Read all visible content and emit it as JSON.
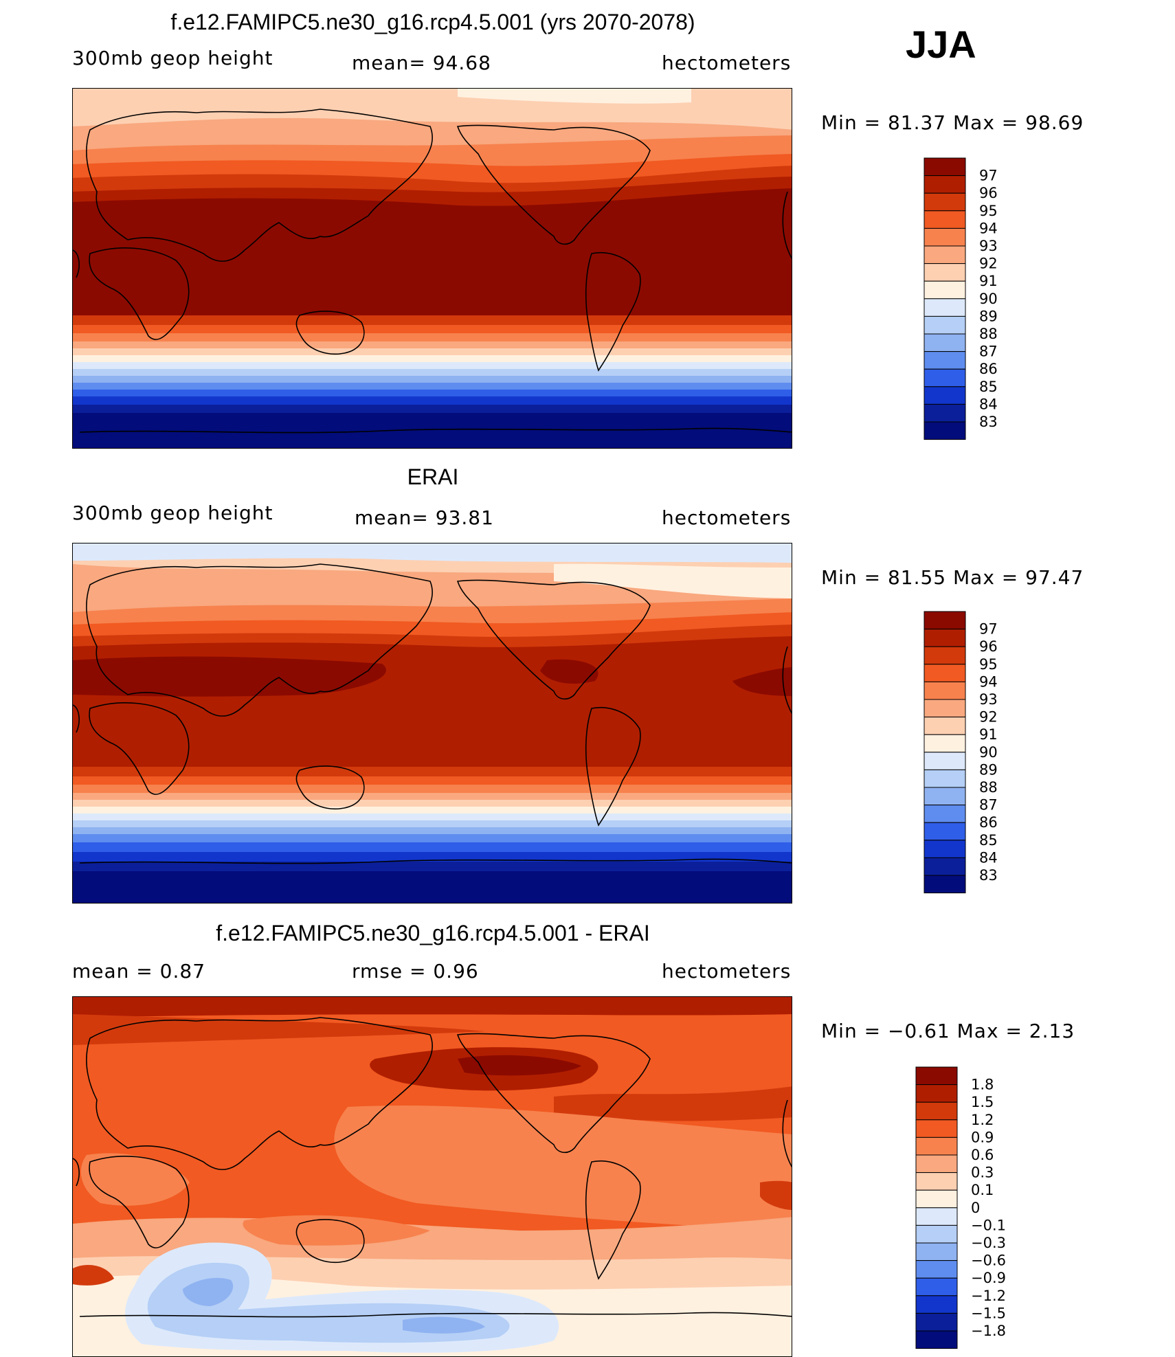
{
  "season": "JJA",
  "panels": [
    {
      "title": "f.e12.FAMIPC5.ne30_g16.rcp4.5.001 (yrs 2070-2078)",
      "variable": "300mb  geop  height",
      "stat_text": "mean=   94.68",
      "units": "hectometers",
      "minmax": "Min  =    81.37  Max  =    98.69",
      "min": 81.37,
      "max": 98.69,
      "colorbar": {
        "labels": [
          "97",
          "96",
          "95",
          "94",
          "93",
          "92",
          "91",
          "90",
          "89",
          "88",
          "87",
          "86",
          "85",
          "84",
          "83"
        ],
        "colors": [
          "#8b0a00",
          "#b01e00",
          "#d23a0c",
          "#f15a22",
          "#f7824e",
          "#f9a87f",
          "#fdd0b2",
          "#fff1e0",
          "#dde9fb",
          "#b5cff6",
          "#8fb2f1",
          "#5f8def",
          "#2f5ee8",
          "#1236cc",
          "#0b1f9a",
          "#020c7a"
        ]
      }
    },
    {
      "title": "ERAI",
      "variable": "300mb  geop  height",
      "stat_text": "mean=   93.81",
      "units": "hectometers",
      "minmax": "Min  =    81.55  Max  =    97.47",
      "min": 81.55,
      "max": 97.47,
      "colorbar": {
        "labels": [
          "97",
          "96",
          "95",
          "94",
          "93",
          "92",
          "91",
          "90",
          "89",
          "88",
          "87",
          "86",
          "85",
          "84",
          "83"
        ],
        "colors": [
          "#8b0a00",
          "#b01e00",
          "#d23a0c",
          "#f15a22",
          "#f7824e",
          "#f9a87f",
          "#fdd0b2",
          "#fff1e0",
          "#dde9fb",
          "#b5cff6",
          "#8fb2f1",
          "#5f8def",
          "#2f5ee8",
          "#1236cc",
          "#0b1f9a",
          "#020c7a"
        ]
      }
    },
    {
      "title": "f.e12.FAMIPC5.ne30_g16.rcp4.5.001 - ERAI",
      "variable": "mean  =     0.87",
      "stat_text": "rmse  =     0.96",
      "units": "hectometers",
      "minmax": "Min  =    −0.61  Max  =      2.13",
      "min": -0.61,
      "max": 2.13,
      "colorbar": {
        "labels": [
          "1.8",
          "1.5",
          "1.2",
          "0.9",
          "0.6",
          "0.3",
          "0.1",
          "0",
          "−0.1",
          "−0.3",
          "−0.6",
          "−0.9",
          "−1.2",
          "−1.5",
          "−1.8"
        ],
        "colors": [
          "#8b0a00",
          "#b01e00",
          "#d23a0c",
          "#f15a22",
          "#f7824e",
          "#f9a87f",
          "#fdd0b2",
          "#fff1e0",
          "#dde9fb",
          "#b5cff6",
          "#8fb2f1",
          "#5f8def",
          "#2f5ee8",
          "#1236cc",
          "#0b1f9a",
          "#020c7a"
        ]
      }
    }
  ]
}
